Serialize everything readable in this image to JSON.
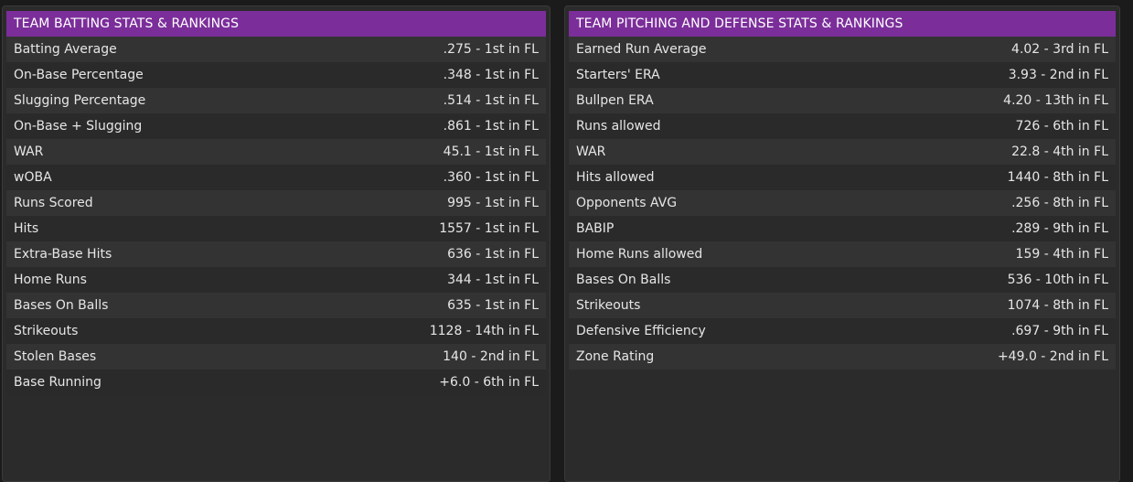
{
  "batting": {
    "title": "TEAM BATTING STATS & RANKINGS",
    "rows": [
      {
        "label": "Batting Average",
        "value": ".275 - 1st in FL"
      },
      {
        "label": "On-Base Percentage",
        "value": ".348 - 1st in FL"
      },
      {
        "label": "Slugging Percentage",
        "value": ".514 - 1st in FL"
      },
      {
        "label": "On-Base + Slugging",
        "value": ".861 - 1st in FL"
      },
      {
        "label": "WAR",
        "value": "45.1 - 1st in FL"
      },
      {
        "label": "wOBA",
        "value": ".360 - 1st in FL"
      },
      {
        "label": "Runs Scored",
        "value": "995 - 1st in FL"
      },
      {
        "label": "Hits",
        "value": "1557 - 1st in FL"
      },
      {
        "label": "Extra-Base Hits",
        "value": "636 - 1st in FL"
      },
      {
        "label": "Home Runs",
        "value": "344 - 1st in FL"
      },
      {
        "label": "Bases On Balls",
        "value": "635 - 1st in FL"
      },
      {
        "label": "Strikeouts",
        "value": "1128 - 14th in FL"
      },
      {
        "label": "Stolen Bases",
        "value": "140 - 2nd in FL"
      },
      {
        "label": "Base Running",
        "value": "+6.0 - 6th in FL"
      }
    ]
  },
  "pitching": {
    "title": "TEAM PITCHING AND DEFENSE STATS & RANKINGS",
    "rows": [
      {
        "label": "Earned Run Average",
        "value": "4.02 - 3rd in FL"
      },
      {
        "label": "Starters' ERA",
        "value": "3.93 - 2nd in FL"
      },
      {
        "label": "Bullpen ERA",
        "value": "4.20 - 13th in FL"
      },
      {
        "label": "Runs allowed",
        "value": "726 - 6th in FL"
      },
      {
        "label": "WAR",
        "value": "22.8 - 4th in FL"
      },
      {
        "label": "Hits allowed",
        "value": "1440 - 8th in FL"
      },
      {
        "label": "Opponents AVG",
        "value": ".256 - 8th in FL"
      },
      {
        "label": "BABIP",
        "value": ".289 - 9th in FL"
      },
      {
        "label": "Home Runs allowed",
        "value": "159 - 4th in FL"
      },
      {
        "label": "Bases On Balls",
        "value": "536 - 10th in FL"
      },
      {
        "label": "Strikeouts",
        "value": "1074 - 8th in FL"
      },
      {
        "label": "Defensive Efficiency",
        "value": ".697 - 9th in FL"
      },
      {
        "label": "Zone Rating",
        "value": "+49.0 - 2nd in FL"
      }
    ]
  },
  "colors": {
    "header_bg": "#7b2e9a",
    "panel_bg": "#2b2b2b",
    "row_odd": "#333333",
    "row_even": "#2a2a2a",
    "text": "#e6e6e6"
  }
}
